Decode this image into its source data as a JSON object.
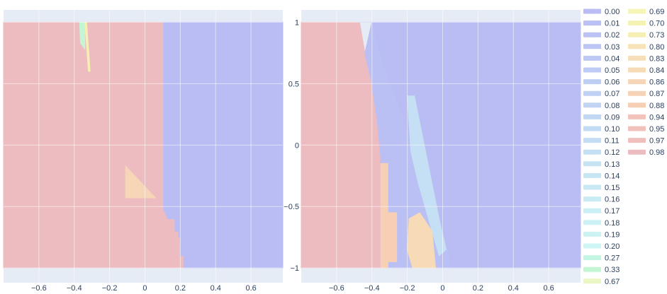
{
  "chart_data": [
    {
      "type": "area",
      "title": "",
      "xlabel": "",
      "ylabel": "",
      "xlim": [
        -0.8,
        0.78
      ],
      "ylim": [
        -1.12,
        1.1
      ],
      "grid": true,
      "x_ticks": [
        -0.6,
        -0.4,
        -0.2,
        0,
        0.2,
        0.4,
        0.6
      ],
      "x_tick_labels": [
        "−0.6",
        "−0.4",
        "−0.2",
        "0",
        "0.2",
        "0.4",
        "0.6"
      ],
      "y_ticks": [
        -1,
        -0.5,
        0,
        0.5,
        1
      ],
      "regions": [
        {
          "name": "0.98",
          "points": [
            [
              -0.8,
              1
            ],
            [
              0.105,
              1
            ],
            [
              0.105,
              -0.52
            ],
            [
              0.13,
              -0.6
            ],
            [
              0.17,
              -0.6
            ],
            [
              0.17,
              -0.7
            ],
            [
              0.19,
              -0.7
            ],
            [
              0.19,
              -0.75
            ],
            [
              0.2,
              -0.75
            ],
            [
              0.2,
              -0.9
            ],
            [
              0.22,
              -0.9
            ],
            [
              0.22,
              -1
            ],
            [
              -0.8,
              -1
            ]
          ]
        },
        {
          "name": "0.00",
          "points": [
            [
              0.105,
              1
            ],
            [
              0.78,
              1
            ],
            [
              0.78,
              -1
            ],
            [
              0.22,
              -1
            ],
            [
              0.22,
              -0.9
            ],
            [
              0.2,
              -0.9
            ],
            [
              0.2,
              -0.75
            ],
            [
              0.19,
              -0.75
            ],
            [
              0.19,
              -0.7
            ],
            [
              0.17,
              -0.7
            ],
            [
              0.17,
              -0.6
            ],
            [
              0.13,
              -0.6
            ],
            [
              0.105,
              -0.52
            ]
          ]
        },
        {
          "name": "0.86",
          "points": [
            [
              -0.11,
              -0.17
            ],
            [
              0.06,
              -0.43
            ],
            [
              -0.11,
              -0.43
            ]
          ]
        },
        {
          "name": "0.33",
          "points": [
            [
              -0.37,
              1
            ],
            [
              -0.34,
              1
            ],
            [
              -0.34,
              0.78
            ],
            [
              -0.365,
              0.83
            ]
          ]
        },
        {
          "name": "0.73",
          "points": [
            [
              -0.34,
              1
            ],
            [
              -0.33,
              1
            ],
            [
              -0.31,
              0.6
            ],
            [
              -0.32,
              0.6
            ]
          ]
        }
      ]
    },
    {
      "type": "area",
      "title": "",
      "xlabel": "",
      "ylabel": "",
      "xlim": [
        -0.8,
        0.78
      ],
      "ylim": [
        -1.12,
        1.1
      ],
      "grid": true,
      "x_ticks": [
        -0.6,
        -0.4,
        -0.2,
        0,
        0.2,
        0.4,
        0.6
      ],
      "x_tick_labels": [
        "−0.6",
        "−0.4",
        "−0.2",
        "0",
        "0.2",
        "0.4",
        "0.6"
      ],
      "y_ticks": [
        -1,
        -0.5,
        0,
        0.5,
        1
      ],
      "y_tick_labels": [
        "−1",
        "−0.5",
        "0",
        "0.5",
        "1"
      ],
      "regions": [
        {
          "name": "0.98",
          "points": [
            [
              -0.8,
              1
            ],
            [
              -0.47,
              1
            ],
            [
              -0.44,
              0.75
            ],
            [
              -0.4,
              0.5
            ],
            [
              -0.37,
              0.2
            ],
            [
              -0.35,
              -0.1
            ],
            [
              -0.35,
              -1
            ],
            [
              -0.8,
              -1
            ]
          ]
        },
        {
          "name": "0.00",
          "points": [
            [
              -0.47,
              1
            ],
            [
              0.78,
              1
            ],
            [
              0.78,
              -1
            ],
            [
              0.04,
              -1
            ],
            [
              0.03,
              -0.85
            ],
            [
              -0.05,
              -0.6
            ],
            [
              -0.12,
              -0.3
            ],
            [
              -0.18,
              -0.05
            ],
            [
              -0.22,
              0.2
            ],
            [
              -0.3,
              0.5
            ],
            [
              -0.36,
              0.75
            ],
            [
              -0.4,
              1
            ]
          ]
        },
        {
          "name": "0.01",
          "points": [
            [
              -0.4,
              1
            ],
            [
              -0.36,
              0.75
            ],
            [
              -0.3,
              0.5
            ],
            [
              -0.22,
              0.2
            ],
            [
              -0.18,
              -0.05
            ],
            [
              -0.12,
              -0.3
            ],
            [
              -0.05,
              -0.6
            ],
            [
              0.03,
              -0.85
            ],
            [
              0.04,
              -1
            ],
            [
              -0.35,
              -1
            ],
            [
              -0.35,
              -0.1
            ],
            [
              -0.37,
              0.2
            ],
            [
              -0.4,
              0.5
            ],
            [
              -0.44,
              0.75
            ]
          ]
        },
        {
          "name": "0.88",
          "points": [
            [
              -0.35,
              -0.15
            ],
            [
              -0.31,
              -0.15
            ],
            [
              -0.31,
              -0.55
            ],
            [
              -0.26,
              -0.55
            ],
            [
              -0.26,
              -0.95
            ],
            [
              -0.31,
              -0.95
            ],
            [
              -0.31,
              -1
            ],
            [
              -0.35,
              -1
            ]
          ]
        },
        {
          "name": "0.12",
          "points": [
            [
              -0.2,
              0.4
            ],
            [
              -0.16,
              0.4
            ],
            [
              -0.02,
              -0.6
            ],
            [
              0.02,
              -0.85
            ],
            [
              -0.02,
              -0.9
            ],
            [
              -0.08,
              -0.6
            ],
            [
              -0.14,
              -0.3
            ],
            [
              -0.18,
              -0.05
            ]
          ]
        },
        {
          "name": "0.84",
          "points": [
            [
              -0.19,
              -0.6
            ],
            [
              -0.13,
              -0.55
            ],
            [
              -0.06,
              -0.7
            ],
            [
              -0.04,
              -1
            ],
            [
              -0.17,
              -1
            ],
            [
              -0.2,
              -0.85
            ]
          ]
        }
      ]
    }
  ],
  "legend": {
    "columns": [
      [
        {
          "label": "0.00",
          "color": "#b9bdf4"
        },
        {
          "label": "0.01",
          "color": "#babff4"
        },
        {
          "label": "0.02",
          "color": "#bbc2f4"
        },
        {
          "label": "0.03",
          "color": "#bcc5f4"
        },
        {
          "label": "0.04",
          "color": "#bdc8f4"
        },
        {
          "label": "0.05",
          "color": "#becbf4"
        },
        {
          "label": "0.06",
          "color": "#bfcef4"
        },
        {
          "label": "0.07",
          "color": "#c0d1f4"
        },
        {
          "label": "0.08",
          "color": "#c1d4f4"
        },
        {
          "label": "0.09",
          "color": "#c2d7f4"
        },
        {
          "label": "0.10",
          "color": "#c3daf4"
        },
        {
          "label": "0.11",
          "color": "#c4ddf4"
        },
        {
          "label": "0.12",
          "color": "#c5e0f4"
        },
        {
          "label": "0.13",
          "color": "#c6e3f4"
        },
        {
          "label": "0.14",
          "color": "#c7e6f4"
        },
        {
          "label": "0.15",
          "color": "#c8e9f4"
        },
        {
          "label": "0.16",
          "color": "#c9ecf4"
        },
        {
          "label": "0.17",
          "color": "#caeff4"
        },
        {
          "label": "0.18",
          "color": "#cbf1f4"
        },
        {
          "label": "0.19",
          "color": "#ccf3f4"
        },
        {
          "label": "0.20",
          "color": "#cdf5f4"
        },
        {
          "label": "0.27",
          "color": "#c2f5e2"
        },
        {
          "label": "0.33",
          "color": "#c4f5d4"
        },
        {
          "label": "0.67",
          "color": "#eaf7c2"
        }
      ],
      [
        {
          "label": "0.69",
          "color": "#f3f6b6"
        },
        {
          "label": "0.70",
          "color": "#f4f3b4"
        },
        {
          "label": "0.73",
          "color": "#f6efb3"
        },
        {
          "label": "0.80",
          "color": "#f6e4b8"
        },
        {
          "label": "0.83",
          "color": "#f6dfb8"
        },
        {
          "label": "0.84",
          "color": "#f6dbb6"
        },
        {
          "label": "0.86",
          "color": "#f6d6b6"
        },
        {
          "label": "0.87",
          "color": "#f6d2b6"
        },
        {
          "label": "0.88",
          "color": "#f6cfb5"
        },
        {
          "label": "0.94",
          "color": "#f3c3bb"
        },
        {
          "label": "0.95",
          "color": "#f2c1bb"
        },
        {
          "label": "0.97",
          "color": "#f0bfbc"
        },
        {
          "label": "0.98",
          "color": "#ecbcc1"
        }
      ]
    ]
  },
  "colors": {
    "background": "#e5ecf6",
    "grid": "#ffffff",
    "text": "#2a3f5f"
  }
}
